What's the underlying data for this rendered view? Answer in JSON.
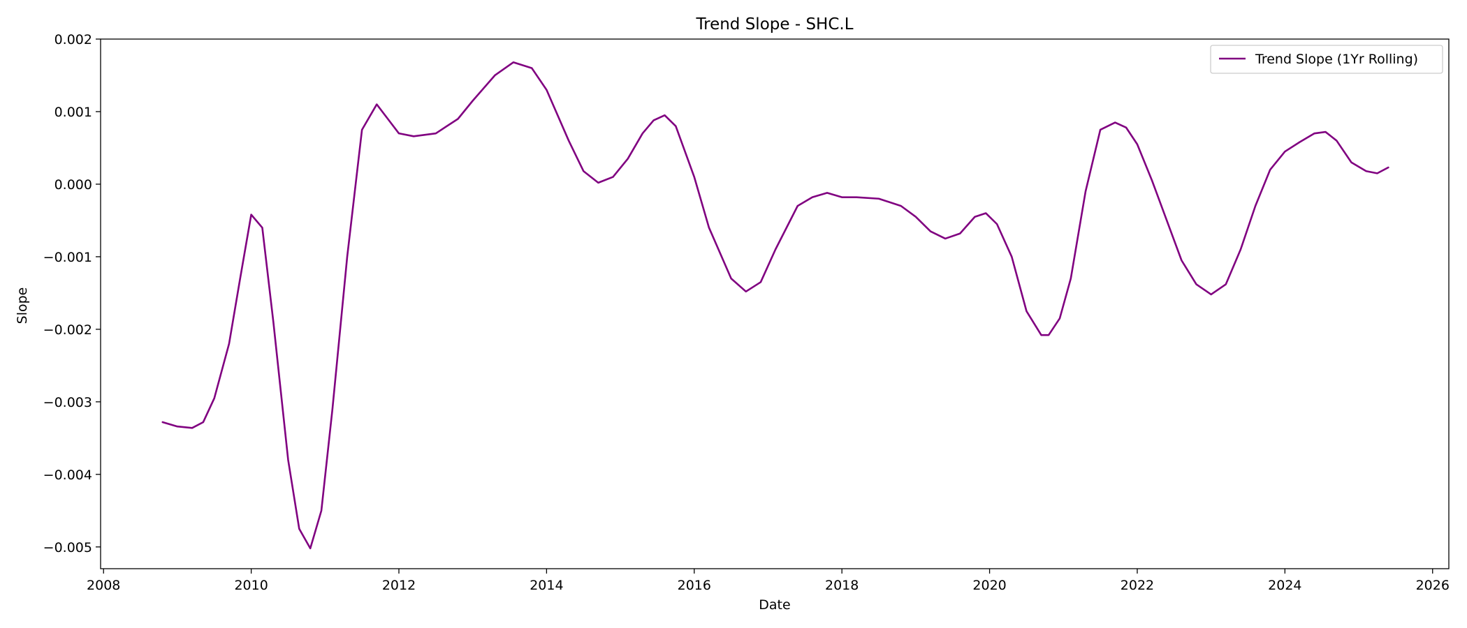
{
  "chart_data": {
    "type": "line",
    "title": "Trend Slope - SHC.L",
    "xlabel": "Date",
    "ylabel": "Slope",
    "xlim": [
      2007.96,
      2026.22
    ],
    "ylim": [
      -0.0053,
      0.002
    ],
    "x_ticks": [
      2008,
      2010,
      2012,
      2014,
      2016,
      2018,
      2020,
      2022,
      2024,
      2026
    ],
    "x_tick_labels": [
      "2008",
      "2010",
      "2012",
      "2014",
      "2016",
      "2018",
      "2020",
      "2022",
      "2024",
      "2026"
    ],
    "y_ticks": [
      -0.005,
      -0.004,
      -0.003,
      -0.002,
      -0.001,
      0.0,
      0.001,
      0.002
    ],
    "y_tick_labels": [
      "−0.005",
      "−0.004",
      "−0.003",
      "−0.002",
      "−0.001",
      "0.000",
      "0.001",
      "0.002"
    ],
    "grid": false,
    "legend_position": "top-right",
    "series": [
      {
        "name": "Trend Slope (1Yr Rolling)",
        "color": "#800080",
        "x": [
          2008.8,
          2009.0,
          2009.2,
          2009.35,
          2009.5,
          2009.7,
          2009.85,
          2010.0,
          2010.15,
          2010.3,
          2010.5,
          2010.65,
          2010.8,
          2010.95,
          2011.1,
          2011.3,
          2011.5,
          2011.7,
          2011.85,
          2012.0,
          2012.2,
          2012.5,
          2012.8,
          2013.0,
          2013.3,
          2013.55,
          2013.8,
          2014.0,
          2014.3,
          2014.5,
          2014.7,
          2014.9,
          2015.1,
          2015.3,
          2015.45,
          2015.6,
          2015.75,
          2016.0,
          2016.2,
          2016.5,
          2016.7,
          2016.9,
          2017.1,
          2017.4,
          2017.6,
          2017.8,
          2018.0,
          2018.2,
          2018.5,
          2018.8,
          2019.0,
          2019.2,
          2019.4,
          2019.6,
          2019.8,
          2019.95,
          2020.1,
          2020.3,
          2020.5,
          2020.7,
          2020.8,
          2020.95,
          2021.1,
          2021.3,
          2021.5,
          2021.7,
          2021.85,
          2022.0,
          2022.2,
          2022.4,
          2022.6,
          2022.8,
          2023.0,
          2023.2,
          2023.4,
          2023.6,
          2023.8,
          2024.0,
          2024.2,
          2024.4,
          2024.55,
          2024.7,
          2024.9,
          2025.1,
          2025.25,
          2025.4
        ],
        "values": [
          -0.00328,
          -0.00334,
          -0.00336,
          -0.00328,
          -0.00295,
          -0.0022,
          -0.0013,
          -0.00042,
          -0.0006,
          -0.0019,
          -0.0038,
          -0.00475,
          -0.00502,
          -0.0045,
          -0.0031,
          -0.001,
          0.00075,
          0.0011,
          0.0009,
          0.0007,
          0.00066,
          0.0007,
          0.0009,
          0.00115,
          0.0015,
          0.00168,
          0.0016,
          0.0013,
          0.0006,
          0.00018,
          2e-05,
          0.0001,
          0.00035,
          0.0007,
          0.00088,
          0.00095,
          0.0008,
          0.0001,
          -0.0006,
          -0.0013,
          -0.00148,
          -0.00135,
          -0.0009,
          -0.0003,
          -0.00018,
          -0.00012,
          -0.00018,
          -0.00018,
          -0.0002,
          -0.0003,
          -0.00045,
          -0.00065,
          -0.00075,
          -0.00068,
          -0.00045,
          -0.0004,
          -0.00055,
          -0.001,
          -0.00175,
          -0.00208,
          -0.00208,
          -0.00185,
          -0.0013,
          -0.0001,
          0.00075,
          0.00085,
          0.00078,
          0.00055,
          5e-05,
          -0.0005,
          -0.00105,
          -0.00138,
          -0.00152,
          -0.00138,
          -0.0009,
          -0.0003,
          0.0002,
          0.00045,
          0.00058,
          0.0007,
          0.00072,
          0.0006,
          0.0003,
          0.00018,
          0.00015,
          0.00023
        ]
      }
    ]
  }
}
